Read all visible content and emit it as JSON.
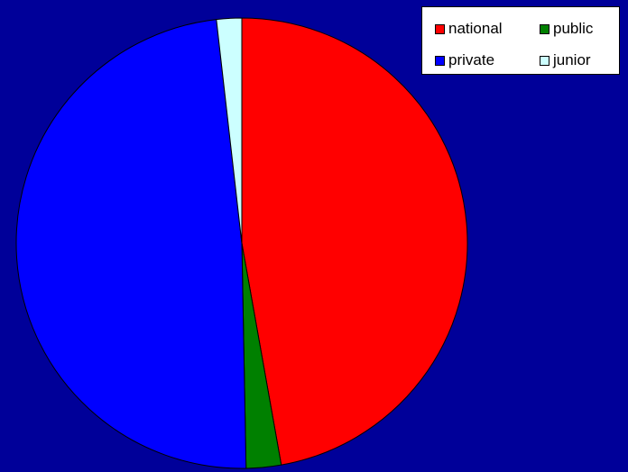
{
  "chart_data": {
    "type": "pie",
    "slices": [
      {
        "label": "national",
        "value": 47.2,
        "color": "#ff0000"
      },
      {
        "label": "public",
        "value": 2.5,
        "color": "#008000"
      },
      {
        "label": "private",
        "value": 48.5,
        "color": "#0000ff"
      },
      {
        "label": "junior",
        "value": 1.8,
        "color": "#ccffff"
      }
    ],
    "start_angle_deg": 0,
    "direction": "clockwise",
    "legend": {
      "placement": "top-right",
      "entries": [
        "national",
        "public",
        "private",
        "junior"
      ]
    },
    "background_color": "#000099"
  }
}
